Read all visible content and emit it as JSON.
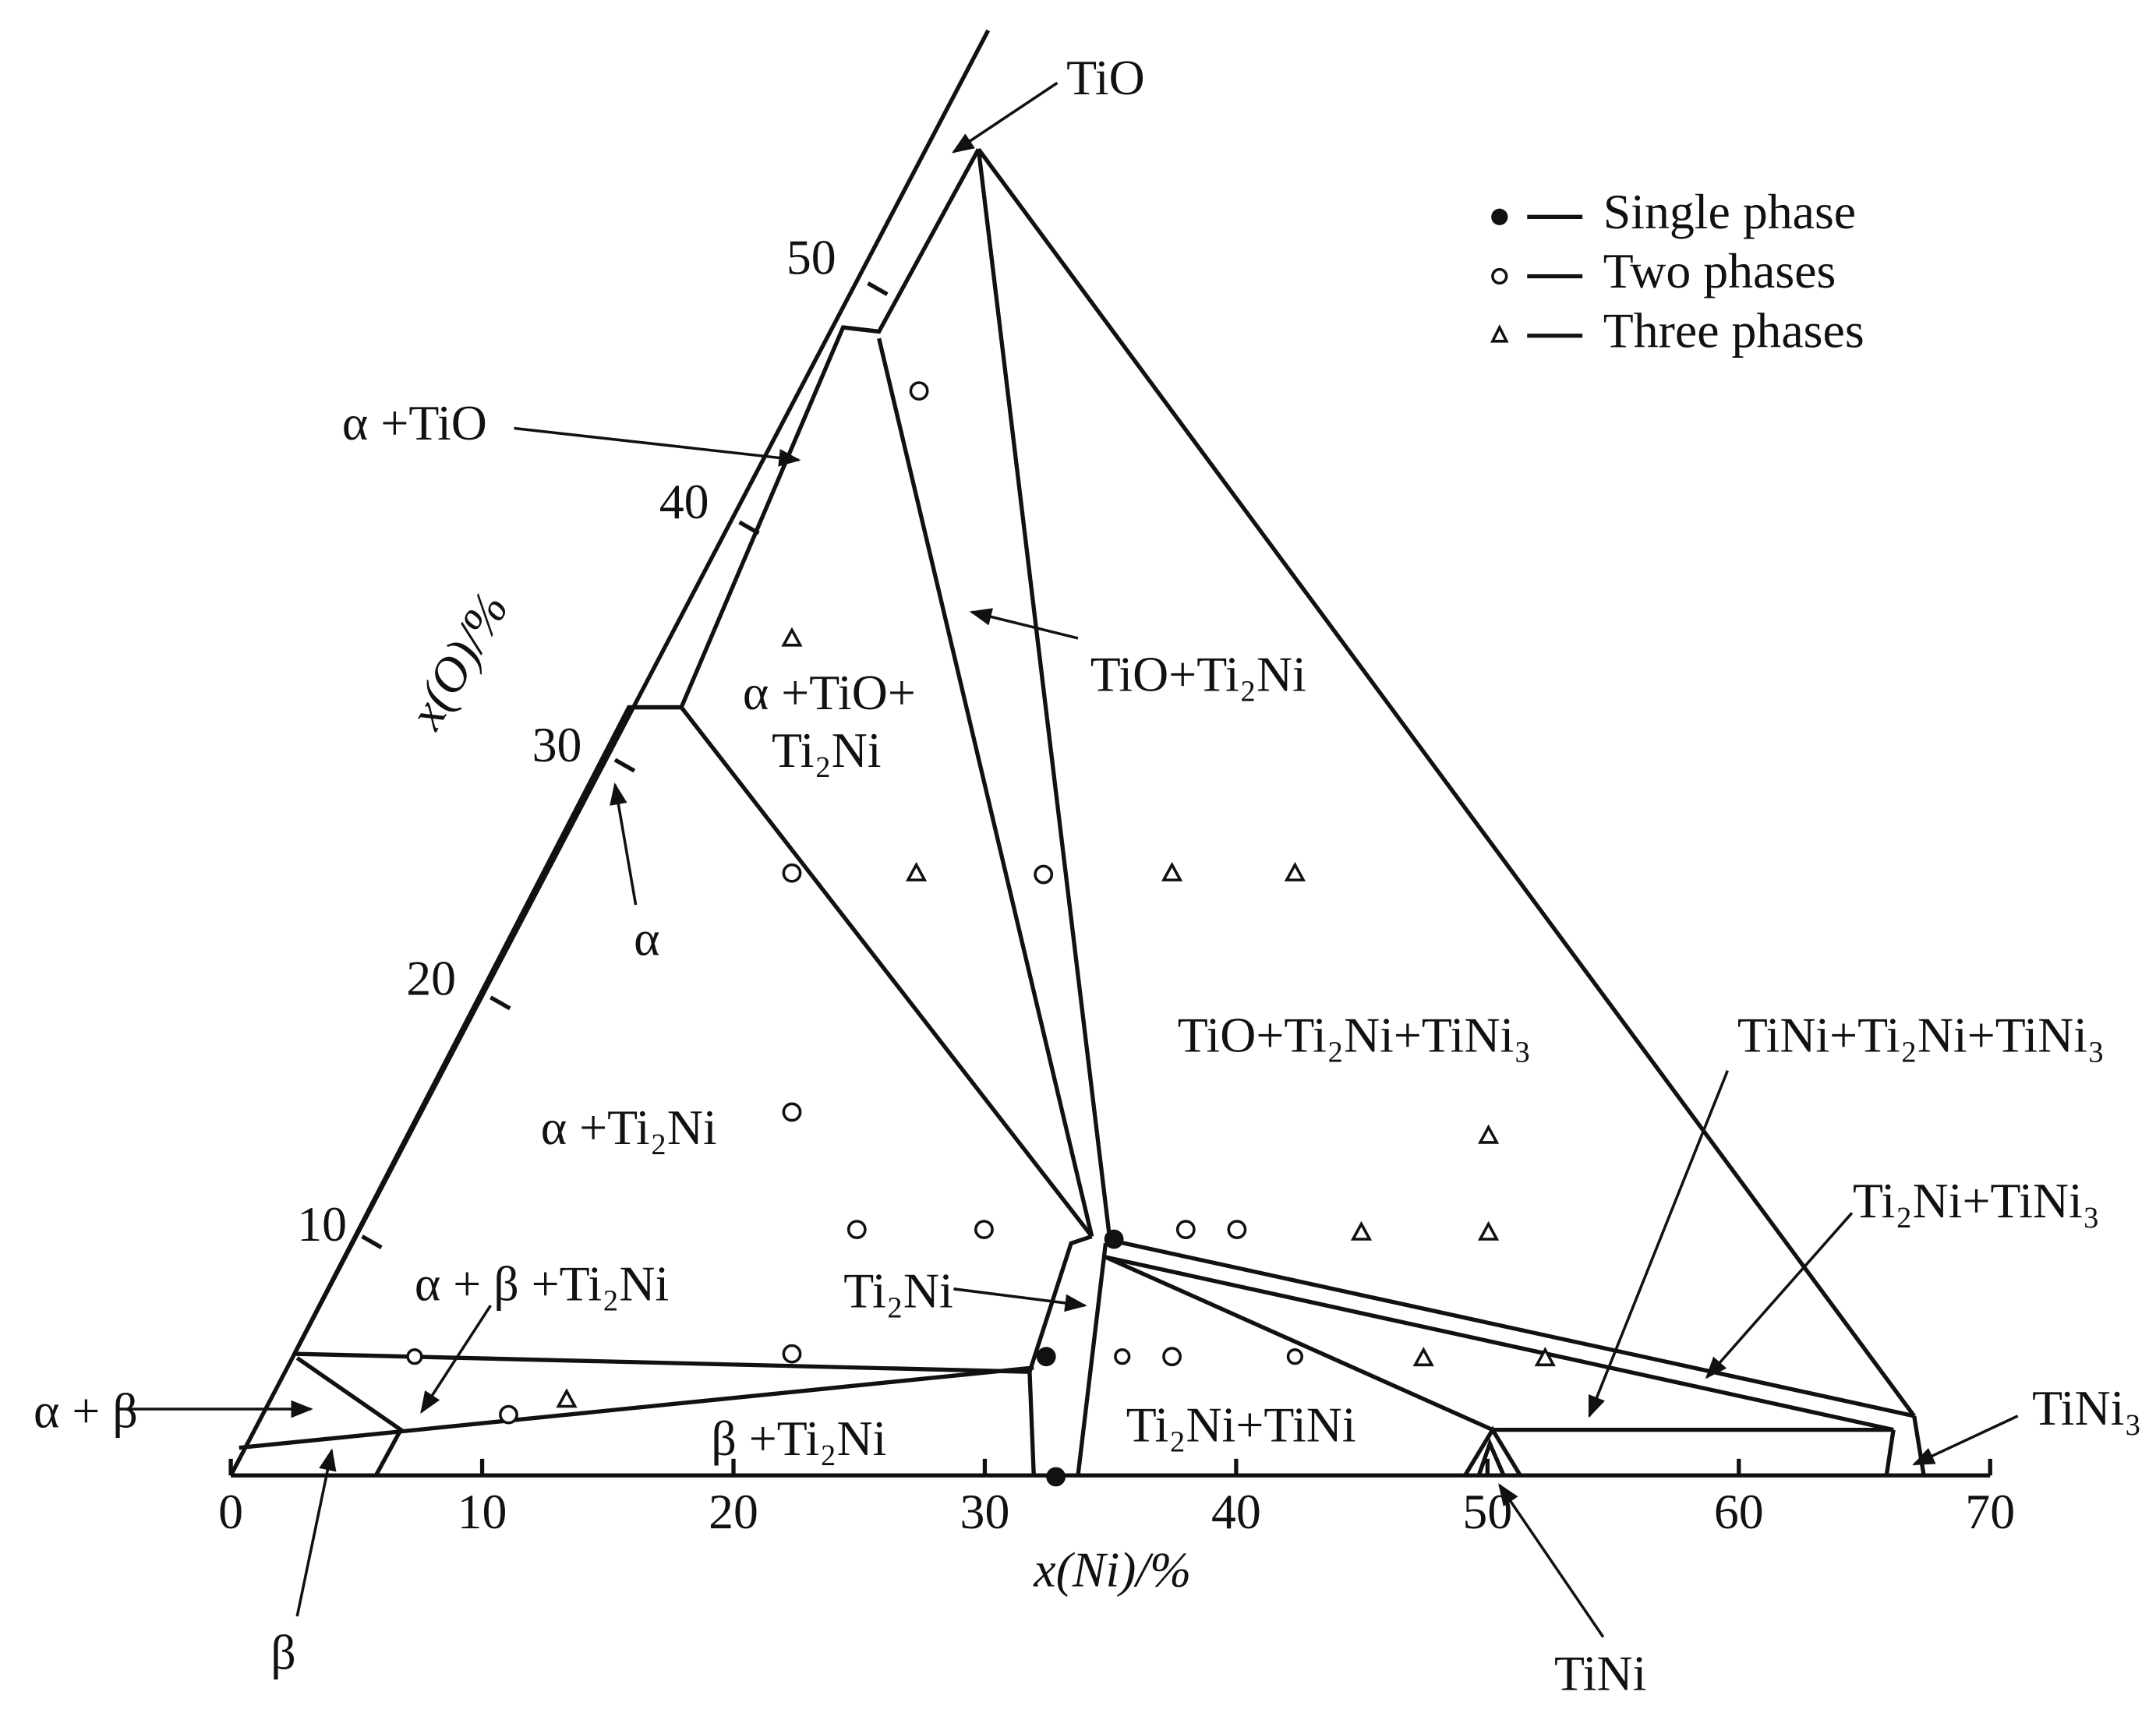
{
  "x_axis": {
    "label": "x(Ni)/%",
    "ticks": [
      0,
      10,
      20,
      30,
      40,
      50,
      60,
      70
    ]
  },
  "o_axis": {
    "label": "x(O)/%",
    "ticks": [
      10,
      20,
      30,
      40,
      50
    ]
  },
  "legend": [
    "Single phase",
    "Two phases",
    "Three phases"
  ],
  "labels": [
    "TiO",
    "α +TiO",
    "α +TiO+",
    "Ti₂Ni",
    "α",
    "TiO+Ti₂Ni",
    "TiO+Ti₂Ni+TiNi₃",
    "TiNi+Ti₂Ni+TiNi₃",
    "α +Ti₂Ni",
    "Ti₂Ni+TiNi₃",
    "α + β +Ti₂Ni",
    "Ti₂Ni",
    "α + β",
    "β +Ti₂Ni",
    "Ti₂Ni+TiNi",
    "TiNi₃",
    "β",
    "TiNi"
  ]
}
